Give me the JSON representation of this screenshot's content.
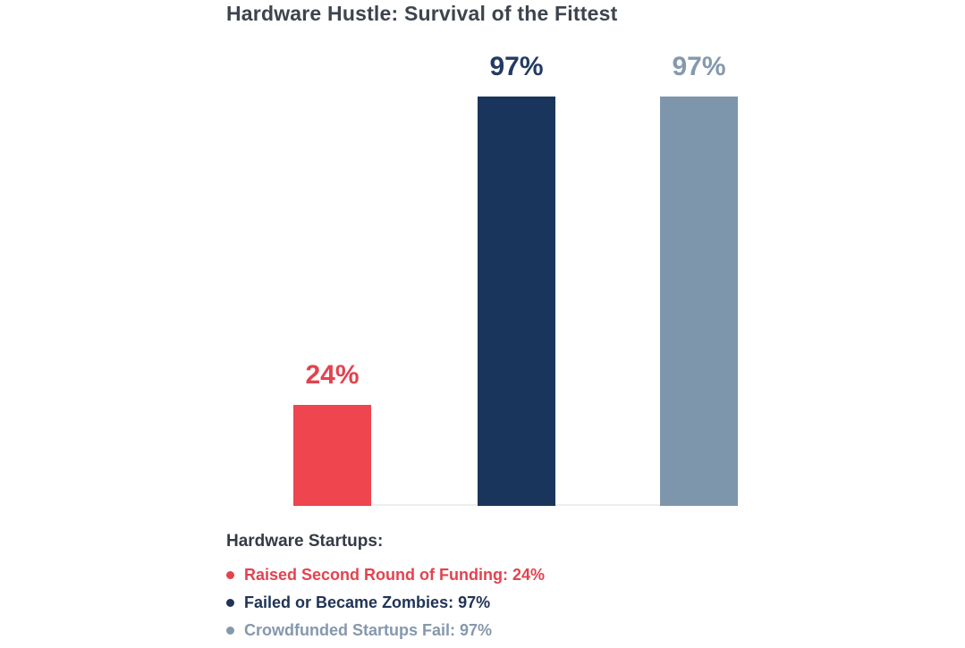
{
  "chart_data": {
    "type": "bar",
    "title": "Hardware Hustle: Survival of the Fittest",
    "categories": [
      "Raised Second Round of Funding",
      "Failed or Became Zombies",
      "Crowdfunded Startups Fail"
    ],
    "values": [
      24,
      97,
      97
    ],
    "unit": "%",
    "value_labels": [
      "24%",
      "97%",
      "97%"
    ],
    "bar_colors": [
      "#ee454e",
      "#1a355c",
      "#7e96ac"
    ],
    "value_label_colors": [
      "#e2434f",
      "#233a66",
      "#8598ad"
    ],
    "ylim": [
      0,
      100
    ],
    "grid": false,
    "xlabel": "",
    "ylabel": "",
    "axis_line_color": "#ededed",
    "legend_position": "bottom-left"
  },
  "legend": {
    "heading": "Hardware Startups:",
    "items": [
      {
        "label": "Raised Second Round of Funding: 24%",
        "color": "#e2434f"
      },
      {
        "label": "Failed or Became Zombies: 97%",
        "color": "#203457"
      },
      {
        "label": "Crowdfunded Startups Fail: 97%",
        "color": "#8598ad"
      }
    ]
  }
}
